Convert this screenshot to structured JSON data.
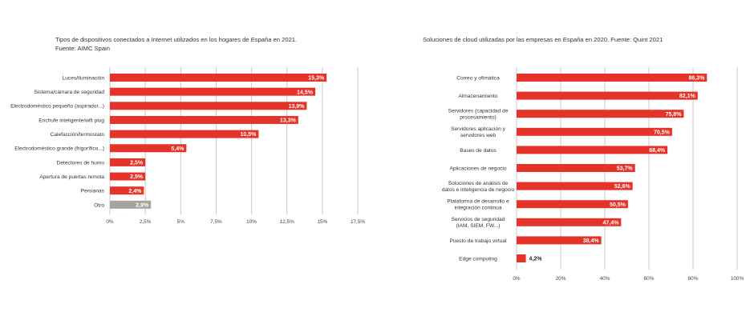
{
  "colors": {
    "bar": "#e63329",
    "bar_other": "#a8a39d",
    "grid": "#c8c8c8",
    "text": "#333333"
  },
  "chart_data": [
    {
      "type": "bar",
      "orientation": "horizontal",
      "title_lines": [
        "Tipos de dispositivos conectados a Internet utilizados en los hogares de España en 2021.",
        "Fuente: AIMC Spain"
      ],
      "categories": [
        [
          "Luces/iluminación"
        ],
        [
          "Sistema/cámara de seguridad"
        ],
        [
          "Electrodoméstico pequeño (aspirador...)"
        ],
        [
          "Enchufe inteligente/wifi plug"
        ],
        [
          "Calefacción/termostato"
        ],
        [
          "Electrodoméstico grande (frigorífico...)"
        ],
        [
          "Detectores de humo"
        ],
        [
          "Apertura de puertas remota"
        ],
        [
          "Persianas"
        ],
        [
          "Otro"
        ]
      ],
      "values": [
        15.3,
        14.5,
        13.9,
        13.3,
        10.5,
        5.4,
        2.5,
        2.5,
        2.4,
        2.9
      ],
      "value_labels": [
        "15,3%",
        "14,5%",
        "13,9%",
        "13,3%",
        "10,5%",
        "5,4%",
        "2,5%",
        "2,5%",
        "2,4%",
        "2,9%"
      ],
      "highlight_other_index": 9,
      "xlim": [
        0,
        17.5
      ],
      "xticks": [
        0,
        2.5,
        5,
        7.5,
        10,
        12.5,
        15,
        17.5
      ],
      "xtick_labels": [
        "0%",
        "2,5%",
        "5%",
        "7,5%",
        "10%",
        "12,5%",
        "15%",
        "17,5%"
      ],
      "grid": true
    },
    {
      "type": "bar",
      "orientation": "horizontal",
      "title_lines": [
        "Soluciones de cloud utilizadas por las empresas en España en 2020. Fuente: Quint 2021"
      ],
      "categories": [
        [
          "Correo y ofimática"
        ],
        [
          "Almacenamiento"
        ],
        [
          "Servidores (capacidad de",
          "procesamiento)"
        ],
        [
          "Servidores aplicación y",
          "servidores web"
        ],
        [
          "Bases de datos"
        ],
        [
          "Aplicaciones de negocio"
        ],
        [
          "Soluciones de análisis de",
          "datos e inteligencia de negocio"
        ],
        [
          "Plataforma de desarrollo e",
          "integración continua"
        ],
        [
          "Servicios de seguridad",
          "(IAM, SIEM, FW...)"
        ],
        [
          "Puesto de trabajo virtual"
        ],
        [
          "Edge computing"
        ]
      ],
      "values": [
        86.3,
        82.1,
        75.8,
        70.5,
        68.4,
        53.7,
        52.6,
        50.5,
        47.4,
        38.4,
        4.2
      ],
      "value_labels": [
        "86,3%",
        "82,1%",
        "75,8%",
        "70,5%",
        "68,4%",
        "53,7%",
        "52,6%",
        "50,5%",
        "47,4%",
        "38,4%",
        "4,2%"
      ],
      "xlim": [
        0,
        100
      ],
      "xticks": [
        0,
        20,
        40,
        60,
        80,
        100
      ],
      "xtick_labels": [
        "0%",
        "20%",
        "40%",
        "60%",
        "80%",
        "100%"
      ],
      "grid": true
    }
  ]
}
